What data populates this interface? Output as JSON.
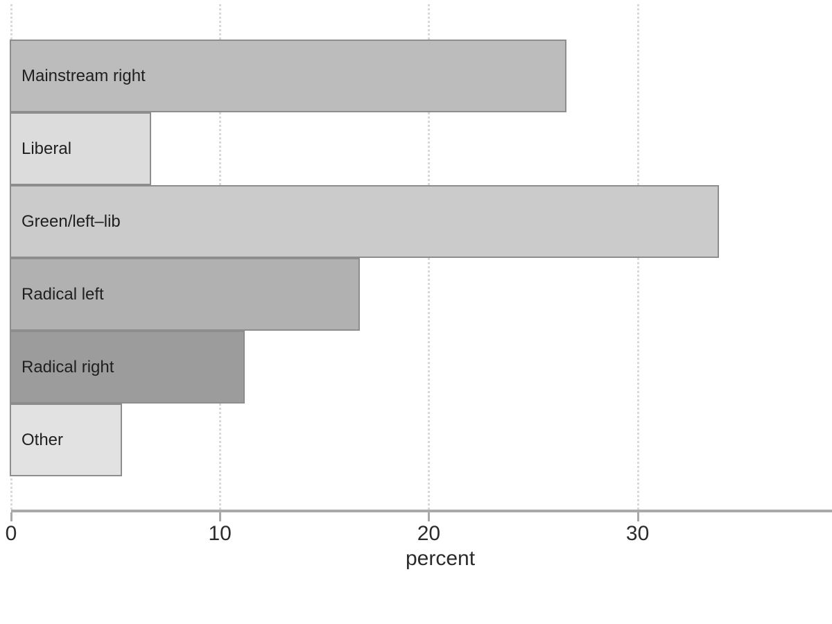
{
  "chart_data": {
    "type": "bar",
    "orientation": "horizontal",
    "title": "",
    "xlabel": "percent",
    "ylabel": "",
    "categories": [
      "Mainstream right",
      "Liberal",
      "Green/left–lib",
      "Radical left",
      "Radical right",
      "Other"
    ],
    "values": [
      26.6,
      6.7,
      33.9,
      16.7,
      11.2,
      5.3
    ],
    "bar_colors": [
      "#bcbcbc",
      "#dcdcdc",
      "#cbcbcb",
      "#b1b1b1",
      "#9c9c9c",
      "#e2e2e2"
    ],
    "bar_border_color": "#8d8d8d",
    "label_color": "#1f1f1f",
    "axis_color": "#a9a9a9",
    "gridline_color": "#d9d9d9",
    "tick_label_color": "#2b2b2b",
    "xticks": [
      0,
      10,
      20,
      30
    ],
    "xlim": [
      0,
      39.3
    ],
    "grid": "vertical dotted lines at xticks, drawn behind bars",
    "legend": "none"
  }
}
